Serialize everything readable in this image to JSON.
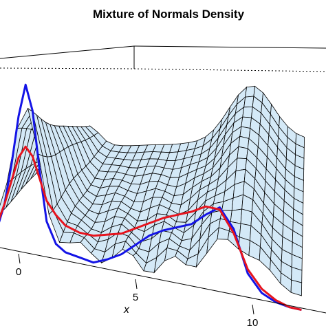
{
  "chart_data": {
    "type": "line",
    "title": "Mixture of Normals Density",
    "xlabel": "x",
    "ylabel": "",
    "zlabel": "",
    "surface": "3D perspective wireframe of a density surface over x and a second axis",
    "x_ticks": [
      0,
      5,
      10
    ],
    "xlim": [
      -1,
      12
    ],
    "grid": false,
    "legend": "none",
    "series": [
      {
        "color": "#1414e6",
        "x": [
          -1.2,
          -0.9,
          -0.6,
          -0.3,
          0.0,
          0.3,
          0.6,
          0.9,
          1.2,
          1.6,
          2.0,
          2.6,
          3.2,
          3.8,
          4.4,
          5.0,
          5.6,
          6.2,
          6.8,
          7.4,
          8.0,
          8.6,
          9.2,
          9.8,
          10.4,
          11.0,
          11.6,
          12.1
        ],
        "y": [
          0.02,
          0.08,
          0.2,
          0.4,
          0.64,
          0.8,
          0.68,
          0.4,
          0.16,
          0.06,
          0.03,
          0.02,
          0.01,
          0.04,
          0.08,
          0.14,
          0.2,
          0.24,
          0.27,
          0.3,
          0.36,
          0.41,
          0.32,
          0.12,
          0.04,
          0.01,
          0.0,
          0.0
        ]
      },
      {
        "color": "#e6141e",
        "x": [
          -1.2,
          -0.9,
          -0.6,
          -0.3,
          0.0,
          0.3,
          0.6,
          0.9,
          1.2,
          1.6,
          2.0,
          2.6,
          3.2,
          3.8,
          4.4,
          5.0,
          5.6,
          6.2,
          6.8,
          7.4,
          8.0,
          8.6,
          9.2,
          9.8,
          10.4,
          11.0,
          11.6,
          12.1
        ],
        "y": [
          0.04,
          0.1,
          0.2,
          0.32,
          0.44,
          0.5,
          0.46,
          0.36,
          0.26,
          0.2,
          0.16,
          0.14,
          0.14,
          0.16,
          0.18,
          0.22,
          0.26,
          0.3,
          0.33,
          0.36,
          0.4,
          0.4,
          0.3,
          0.14,
          0.06,
          0.02,
          0.0,
          0.0
        ]
      }
    ],
    "colors": {
      "surface_fill": "#d4e9f7",
      "wireframe": "#000000",
      "box": "#000000"
    }
  }
}
